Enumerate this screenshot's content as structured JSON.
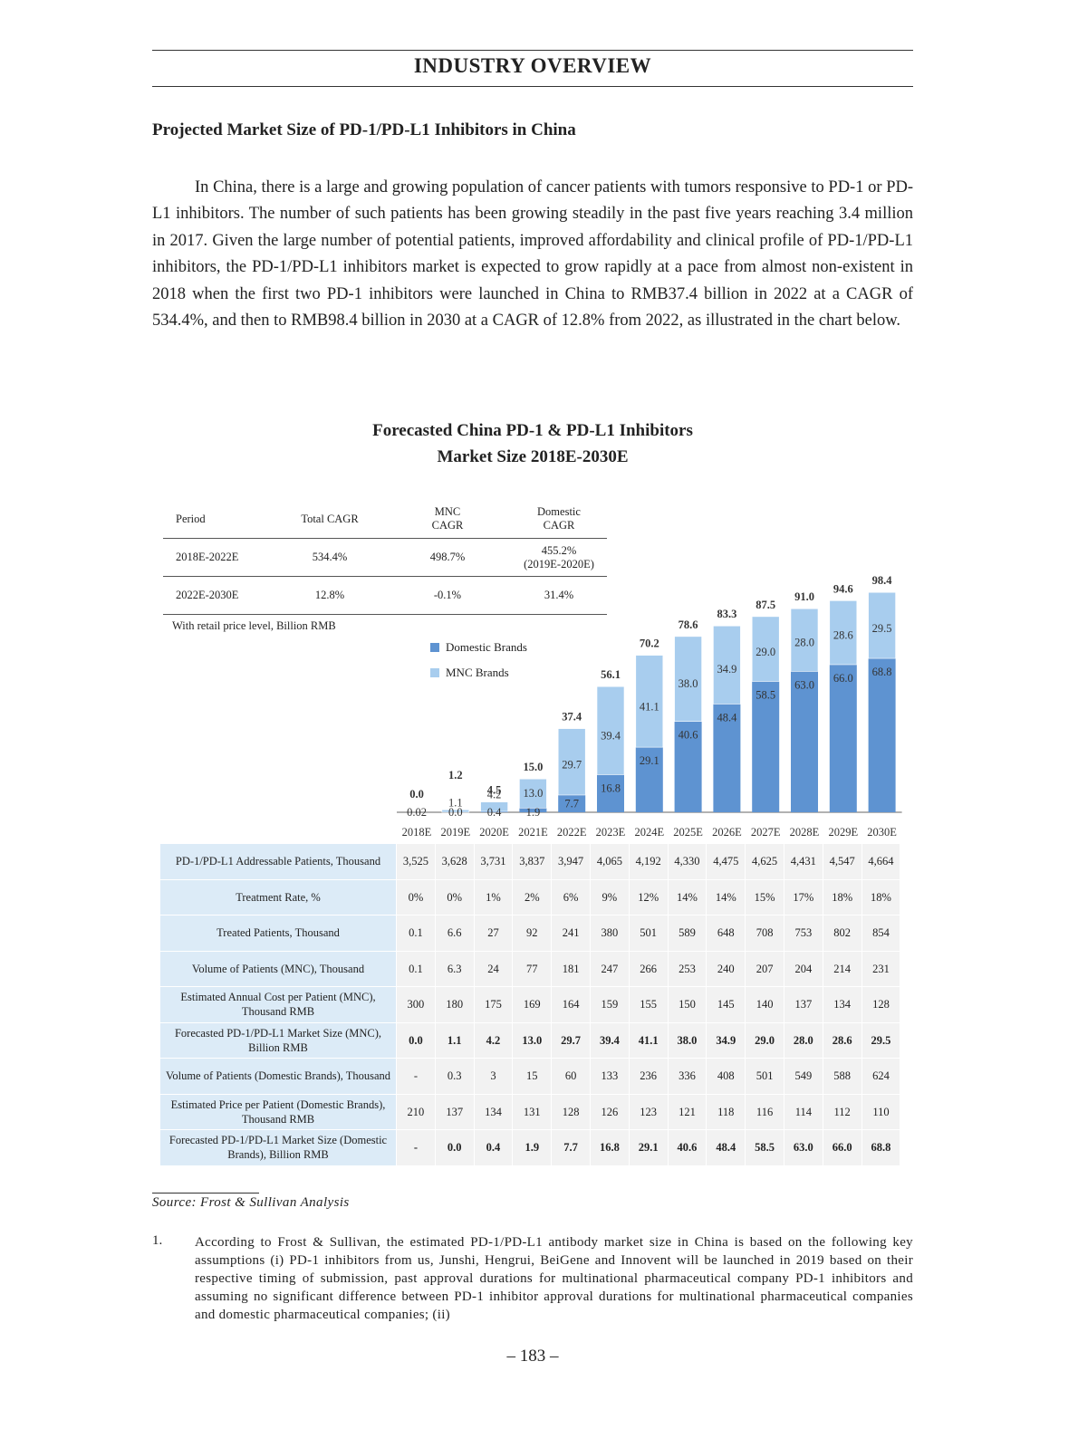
{
  "header": {
    "title": "INDUSTRY OVERVIEW"
  },
  "section": {
    "title": "Projected Market Size of PD-1/PD-L1 Inhibitors in China"
  },
  "body_text": "In China, there is a large and growing population of cancer patients with tumors responsive to PD-1 or PD-L1 inhibitors. The number of such patients has been growing steadily in the past five years reaching 3.4 million in 2017. Given the large number of potential patients, improved affordability and clinical profile of PD-1/PD-L1 inhibitors, the PD-1/PD-L1 inhibitors market is expected to grow rapidly at a pace from almost non-existent in 2018 when the first two PD-1 inhibitors were launched in China to RMB37.4 billion in 2022 at a CAGR of 534.4%, and then to RMB98.4 billion in 2030 at a CAGR of 12.8% from 2022, as illustrated in the chart below.",
  "chart_heading": {
    "line1": "Forecasted China PD-1 & PD-L1 Inhibitors",
    "line2": "Market Size 2018E-2030E"
  },
  "cagr_table": {
    "headers": [
      "Period",
      "Total CAGR",
      "MNC CAGR",
      "Domestic CAGR"
    ],
    "rows": [
      {
        "period": "2018E-2022E",
        "total": "534.4%",
        "mnc": "498.7%",
        "domestic": "455.2%",
        "domestic_note": "(2019E-2020E)"
      },
      {
        "period": "2022E-2030E",
        "total": "12.8%",
        "mnc": "-0.1%",
        "domestic": "31.4%",
        "domestic_note": ""
      }
    ]
  },
  "unit_note": "With retail price level, Billion RMB",
  "colors": {
    "domestic": "#5e93d1",
    "mnc": "#a8cdee",
    "label_bg": "#dcebf7",
    "cell_bg": "#f2f2f2"
  },
  "chart_data": {
    "type": "bar",
    "stacked": true,
    "categories": [
      "2018E",
      "2019E",
      "2020E",
      "2021E",
      "2022E",
      "2023E",
      "2024E",
      "2025E",
      "2026E",
      "2027E",
      "2028E",
      "2029E",
      "2030E"
    ],
    "series": [
      {
        "name": "Domestic Brands",
        "values": [
          0.0,
          0.0,
          0.4,
          1.9,
          7.7,
          16.8,
          29.1,
          40.6,
          48.4,
          58.5,
          63.0,
          66.0,
          68.8
        ],
        "labels": [
          "0.02",
          "0.0",
          "0.4",
          "1.9",
          "7.7",
          "16.8",
          "29.1",
          "40.6",
          "48.4",
          "58.5",
          "63.0",
          "66.0",
          "68.8"
        ]
      },
      {
        "name": "MNC Brands",
        "values": [
          0.0,
          1.1,
          4.2,
          13.0,
          29.7,
          39.4,
          41.1,
          38.0,
          34.9,
          29.0,
          28.0,
          28.6,
          29.5
        ],
        "labels": [
          "",
          "1.1",
          "4.2",
          "13.0",
          "29.7",
          "39.4",
          "41.1",
          "38.0",
          "34.9",
          "29.0",
          "28.0",
          "28.6",
          "29.5"
        ]
      }
    ],
    "totals": [
      "0.0",
      "1.2",
      "4.5",
      "15.0",
      "37.4",
      "56.1",
      "70.2",
      "78.6",
      "83.3",
      "87.5",
      "91.0",
      "94.6",
      "98.4"
    ],
    "ylim": [
      0,
      100
    ],
    "ylabel": "",
    "legend_position": "top-left"
  },
  "data_table": {
    "rows": [
      {
        "label": "PD-1/PD-L1 Addressable Patients, Thousand",
        "bold": false,
        "values": [
          "3,525",
          "3,628",
          "3,731",
          "3,837",
          "3,947",
          "4,065",
          "4,192",
          "4,330",
          "4,475",
          "4,625",
          "4,431",
          "4,547",
          "4,664"
        ]
      },
      {
        "label": "Treatment Rate, %",
        "bold": false,
        "values": [
          "0%",
          "0%",
          "1%",
          "2%",
          "6%",
          "9%",
          "12%",
          "14%",
          "14%",
          "15%",
          "17%",
          "18%",
          "18%"
        ]
      },
      {
        "label": "Treated Patients, Thousand",
        "bold": false,
        "values": [
          "0.1",
          "6.6",
          "27",
          "92",
          "241",
          "380",
          "501",
          "589",
          "648",
          "708",
          "753",
          "802",
          "854"
        ]
      },
      {
        "label": "Volume of Patients (MNC), Thousand",
        "bold": false,
        "values": [
          "0.1",
          "6.3",
          "24",
          "77",
          "181",
          "247",
          "266",
          "253",
          "240",
          "207",
          "204",
          "214",
          "231"
        ]
      },
      {
        "label": "Estimated Annual Cost per Patient (MNC), Thousand RMB",
        "bold": false,
        "values": [
          "300",
          "180",
          "175",
          "169",
          "164",
          "159",
          "155",
          "150",
          "145",
          "140",
          "137",
          "134",
          "128"
        ]
      },
      {
        "label": "Forecasted PD-1/PD-L1 Market Size (MNC), Billion RMB",
        "bold": true,
        "values": [
          "0.0",
          "1.1",
          "4.2",
          "13.0",
          "29.7",
          "39.4",
          "41.1",
          "38.0",
          "34.9",
          "29.0",
          "28.0",
          "28.6",
          "29.5"
        ]
      },
      {
        "label": "Volume of Patients (Domestic Brands), Thousand",
        "bold": false,
        "values": [
          "-",
          "0.3",
          "3",
          "15",
          "60",
          "133",
          "236",
          "336",
          "408",
          "501",
          "549",
          "588",
          "624"
        ]
      },
      {
        "label": "Estimated Price per Patient (Domestic Brands), Thousand RMB",
        "bold": false,
        "values": [
          "210",
          "137",
          "134",
          "131",
          "128",
          "126",
          "123",
          "121",
          "118",
          "116",
          "114",
          "112",
          "110"
        ]
      },
      {
        "label": "Forecasted PD-1/PD-L1 Market Size (Domestic Brands), Billion RMB",
        "bold": true,
        "values": [
          "-",
          "0.0",
          "0.4",
          "1.9",
          "7.7",
          "16.8",
          "29.1",
          "40.6",
          "48.4",
          "58.5",
          "63.0",
          "66.0",
          "68.8"
        ]
      }
    ]
  },
  "source": "Source: Frost & Sullivan Analysis",
  "footnote": {
    "number": "1.",
    "text": "According to Frost & Sullivan, the estimated PD-1/PD-L1 antibody market size in China is based on the following key assumptions (i) PD-1 inhibitors from us, Junshi, Hengrui, BeiGene and Innovent will be launched in 2019 based on their respective timing of submission, past approval durations for multinational pharmaceutical company PD-1 inhibitors and assuming no significant difference between PD-1 inhibitor approval durations for multinational pharmaceutical companies and domestic pharmaceutical companies; (ii)"
  },
  "page_number": "– 183 –"
}
